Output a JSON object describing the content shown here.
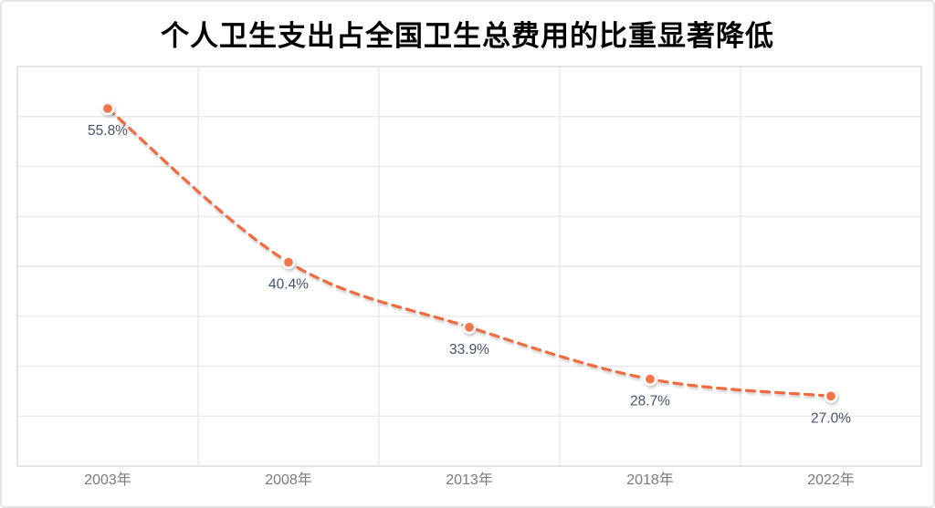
{
  "title": "个人卫生支出占全国卫生总费用的比重显著降低",
  "chart_data": {
    "type": "line",
    "title": "个人卫生支出占全国卫生总费用的比重显著降低",
    "categories": [
      "2003年",
      "2008年",
      "2013年",
      "2018年",
      "2022年"
    ],
    "values": [
      55.8,
      40.4,
      33.9,
      28.7,
      27.0
    ],
    "data_labels": [
      "55.8%",
      "40.4%",
      "33.9%",
      "28.7%",
      "27.0%"
    ],
    "xlabel": "",
    "ylabel": "",
    "ylim": [
      20,
      60
    ],
    "grid_step": 5,
    "grid": "on",
    "legend": "none",
    "line_style": "dashed",
    "marker": "circle",
    "colors": {
      "line": "#ee6c41",
      "marker_fill": "#f2764b",
      "marker_ring": "#ffffff",
      "data_label": "#44546a",
      "axis_label": "#7a7a7a",
      "gridline": "#e9e9e9",
      "plot_border": "#d9d9d9",
      "title": "#000000",
      "background": "#ffffff"
    }
  }
}
